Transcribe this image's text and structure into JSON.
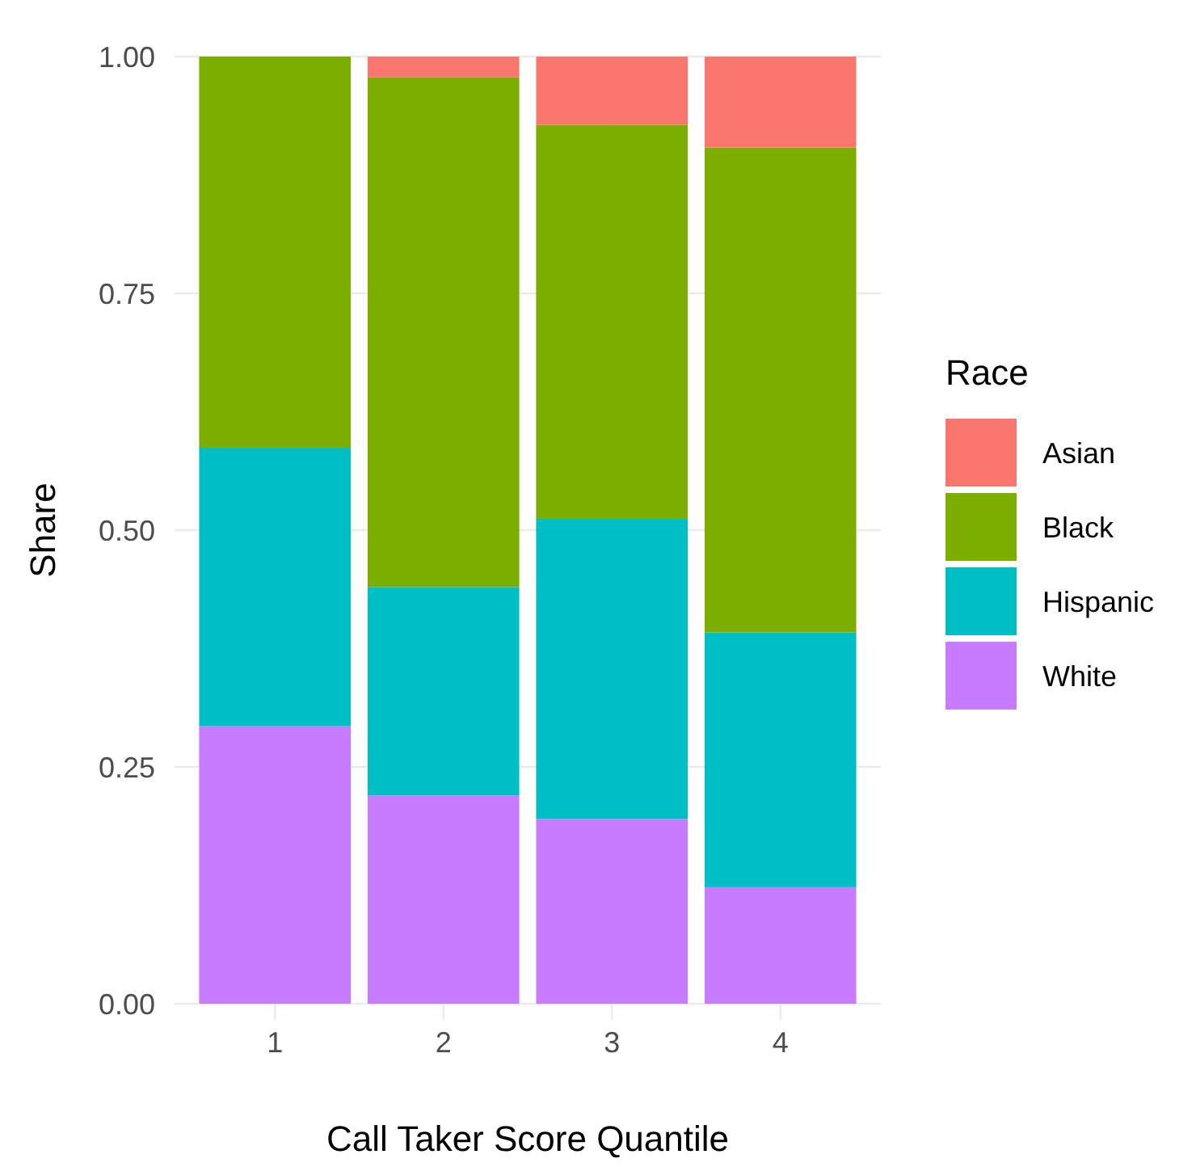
{
  "chart_data": {
    "type": "bar",
    "stacked": true,
    "xlabel": "Call Taker Score Quantile",
    "ylabel": "Share",
    "legend_title": "Race",
    "legend": "right",
    "grid": true,
    "categories": [
      "1",
      "2",
      "3",
      "4"
    ],
    "ylim": [
      0,
      1
    ],
    "yticks": [
      {
        "value": 0,
        "label": "0.00"
      },
      {
        "value": 0.25,
        "label": "0.25"
      },
      {
        "value": 0.5,
        "label": "0.50"
      },
      {
        "value": 0.75,
        "label": "0.75"
      },
      {
        "value": 1,
        "label": "1.00"
      }
    ],
    "series": [
      {
        "name": "White",
        "color": "#c77cff",
        "values": [
          0.293,
          0.22,
          0.195,
          0.123
        ]
      },
      {
        "name": "Hispanic",
        "color": "#00bfc4",
        "values": [
          0.294,
          0.22,
          0.317,
          0.269
        ]
      },
      {
        "name": "Black",
        "color": "#7cae00",
        "values": [
          0.413,
          0.538,
          0.416,
          0.512
        ]
      },
      {
        "name": "Asian",
        "color": "#f8766d",
        "values": [
          0,
          0.022,
          0.072,
          0.096
        ]
      }
    ]
  }
}
